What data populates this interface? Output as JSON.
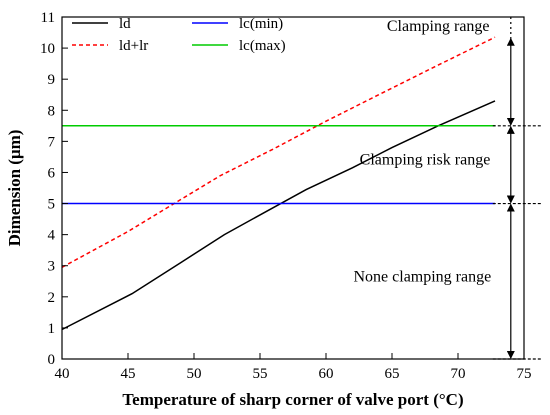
{
  "chart_data": {
    "type": "line",
    "title": "",
    "xlabel": "Temperature of sharp corner of valve port (°C)",
    "ylabel": "Dimension (μm)",
    "xlim": [
      40,
      75
    ],
    "ylim": [
      0,
      11
    ],
    "xticks": [
      40,
      45,
      50,
      55,
      60,
      65,
      70,
      75
    ],
    "yticks": [
      0,
      1,
      2,
      3,
      4,
      5,
      6,
      7,
      8,
      9,
      10,
      11
    ],
    "grid": false,
    "legend_position": "top-left",
    "series": [
      {
        "name": "ld",
        "color": "#000000",
        "dash": "solid",
        "x": [
          40,
          45.3,
          49,
          52.3,
          55.5,
          58.5,
          62,
          65,
          68.5,
          72.8
        ],
        "y": [
          0.95,
          2.1,
          3.1,
          4.0,
          4.75,
          5.45,
          6.15,
          6.8,
          7.5,
          8.3
        ]
      },
      {
        "name": "ld+lr",
        "color": "#ff0000",
        "dash": "dashed",
        "x": [
          40,
          45,
          48.5,
          52,
          56,
          60,
          64,
          68,
          72.8
        ],
        "y": [
          2.95,
          4.1,
          5.0,
          5.9,
          6.75,
          7.65,
          8.5,
          9.35,
          10.35
        ]
      },
      {
        "name": "lc(min)",
        "color": "#0000ff",
        "dash": "solid",
        "x": [
          40,
          72.8
        ],
        "y": [
          5.0,
          5.0
        ]
      },
      {
        "name": "lc(max)",
        "color": "#00cc00",
        "dash": "solid",
        "x": [
          40,
          72.8
        ],
        "y": [
          7.5,
          7.5
        ]
      }
    ],
    "annotations": [
      {
        "text": "Clamping range",
        "x": 68.5,
        "y": 10.55
      },
      {
        "text": "Clamping risk range",
        "x": 67.5,
        "y": 6.25
      },
      {
        "text": "None clamping range",
        "x": 67.3,
        "y": 2.5
      }
    ],
    "range_arrows": [
      {
        "from": 0,
        "to": 5
      },
      {
        "from": 5,
        "to": 7.5
      },
      {
        "from": 7.5,
        "to": 11
      }
    ],
    "arrow_x": 74,
    "dotted_boundaries": [
      0,
      5,
      7.5,
      11
    ]
  }
}
